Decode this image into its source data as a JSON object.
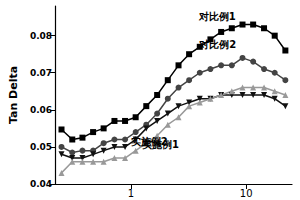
{
  "chart_data": {
    "type": "line",
    "ylabel": "Tan Delta",
    "log": "x",
    "xlim": [
      0.22,
      25
    ],
    "xticks": [
      1,
      10
    ],
    "ylim": [
      0.04,
      0.088
    ],
    "yticks": [
      0.04,
      0.05,
      0.06,
      0.07,
      0.08
    ],
    "grid": false,
    "x": [
      0.25,
      0.31,
      0.38,
      0.47,
      0.58,
      0.72,
      0.89,
      1.1,
      1.36,
      1.69,
      2.09,
      2.59,
      3.2,
      3.96,
      4.9,
      6.07,
      7.51,
      9.3,
      11.5,
      14.3,
      17.7,
      21.9
    ],
    "series": [
      {
        "name": "对比例1",
        "color": "#000000",
        "marker": "square",
        "values": [
          0.0547,
          0.052,
          0.0525,
          0.054,
          0.055,
          0.057,
          0.057,
          0.058,
          0.061,
          0.064,
          0.068,
          0.072,
          0.075,
          0.077,
          0.079,
          0.081,
          0.082,
          0.083,
          0.083,
          0.082,
          0.08,
          0.076
        ]
      },
      {
        "name": "对比例2",
        "color": "#444444",
        "marker": "circle",
        "values": [
          0.05,
          0.0485,
          0.049,
          0.049,
          0.051,
          0.052,
          0.052,
          0.054,
          0.056,
          0.059,
          0.063,
          0.066,
          0.068,
          0.07,
          0.071,
          0.072,
          0.072,
          0.074,
          0.073,
          0.071,
          0.07,
          0.068
        ]
      },
      {
        "name": "实施例2",
        "color": "#111111",
        "marker": "triangle-down",
        "values": [
          0.048,
          0.047,
          0.047,
          0.048,
          0.049,
          0.05,
          0.05,
          0.052,
          0.055,
          0.057,
          0.059,
          0.061,
          0.062,
          0.063,
          0.063,
          0.064,
          0.064,
          0.064,
          0.064,
          0.064,
          0.063,
          0.061
        ]
      },
      {
        "name": "实施例1",
        "color": "#999999",
        "marker": "triangle",
        "values": [
          0.043,
          0.046,
          0.046,
          0.046,
          0.046,
          0.047,
          0.047,
          0.049,
          0.051,
          0.053,
          0.056,
          0.058,
          0.061,
          0.062,
          0.063,
          0.064,
          0.065,
          0.066,
          0.066,
          0.066,
          0.065,
          0.064
        ]
      }
    ]
  }
}
